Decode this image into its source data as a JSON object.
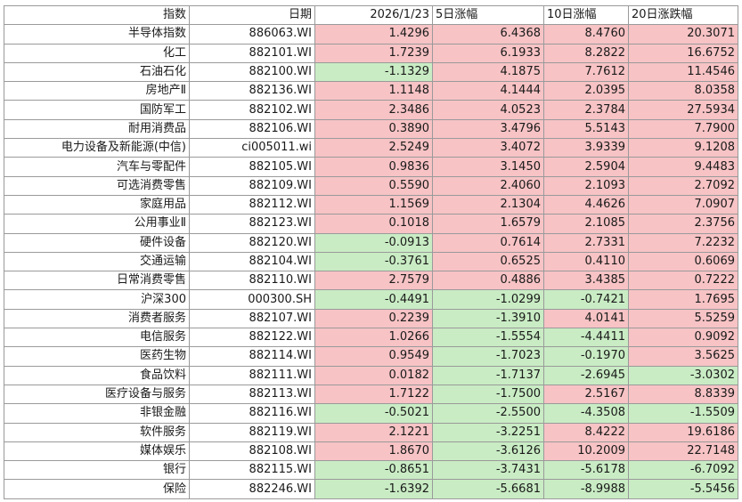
{
  "headers": {
    "name": "指数",
    "code": "日期",
    "d1": "2026/1/23",
    "d5": "5日涨幅",
    "d10": "10日涨幅",
    "d20": "20日涨跌幅"
  },
  "rows": [
    {
      "name": "半导体指数",
      "code": "886063.WI",
      "d1": "1.4296",
      "d5": "6.4368",
      "d10": "8.4760",
      "d20": "20.3071"
    },
    {
      "name": "化工",
      "code": "882101.WI",
      "d1": "1.7239",
      "d5": "6.1933",
      "d10": "8.2822",
      "d20": "16.6752"
    },
    {
      "name": "石油石化",
      "code": "882100.WI",
      "d1": "-1.1329",
      "d5": "4.1875",
      "d10": "7.7612",
      "d20": "11.4546"
    },
    {
      "name": "房地产Ⅱ",
      "code": "882136.WI",
      "d1": "1.1148",
      "d5": "4.1444",
      "d10": "2.0395",
      "d20": "8.0358"
    },
    {
      "name": "国防军工",
      "code": "882102.WI",
      "d1": "2.3486",
      "d5": "4.0523",
      "d10": "2.3784",
      "d20": "27.5934"
    },
    {
      "name": "耐用消费品",
      "code": "882106.WI",
      "d1": "0.3890",
      "d5": "3.4796",
      "d10": "5.5143",
      "d20": "7.7900"
    },
    {
      "name": "电力设备及新能源(中信)",
      "code": "ci005011.wi",
      "d1": "2.5249",
      "d5": "3.4072",
      "d10": "3.9339",
      "d20": "9.1208"
    },
    {
      "name": "汽车与零配件",
      "code": "882105.WI",
      "d1": "0.9836",
      "d5": "3.1450",
      "d10": "2.5904",
      "d20": "9.4483"
    },
    {
      "name": "可选消费零售",
      "code": "882109.WI",
      "d1": "0.5590",
      "d5": "2.4060",
      "d10": "2.1093",
      "d20": "2.7092"
    },
    {
      "name": "家庭用品",
      "code": "882112.WI",
      "d1": "1.1569",
      "d5": "2.1304",
      "d10": "4.4626",
      "d20": "7.0907"
    },
    {
      "name": "公用事业Ⅱ",
      "code": "882123.WI",
      "d1": "0.1018",
      "d5": "1.6579",
      "d10": "2.1085",
      "d20": "2.3756"
    },
    {
      "name": "硬件设备",
      "code": "882120.WI",
      "d1": "-0.0913",
      "d5": "0.7614",
      "d10": "2.7331",
      "d20": "7.2232"
    },
    {
      "name": "交通运输",
      "code": "882104.WI",
      "d1": "-0.3761",
      "d5": "0.6525",
      "d10": "0.4110",
      "d20": "0.6069"
    },
    {
      "name": "日常消费零售",
      "code": "882110.WI",
      "d1": "2.7579",
      "d5": "0.4886",
      "d10": "3.4385",
      "d20": "0.7222"
    },
    {
      "name": "沪深300",
      "code": "000300.SH",
      "d1": "-0.4491",
      "d5": "-1.0299",
      "d10": "-0.7421",
      "d20": "1.7695"
    },
    {
      "name": "消费者服务",
      "code": "882107.WI",
      "d1": "0.2239",
      "d5": "-1.3910",
      "d10": "4.0141",
      "d20": "5.5259"
    },
    {
      "name": "电信服务",
      "code": "882122.WI",
      "d1": "1.0266",
      "d5": "-1.5554",
      "d10": "-4.4411",
      "d20": "0.9092"
    },
    {
      "name": "医药生物",
      "code": "882114.WI",
      "d1": "0.9549",
      "d5": "-1.7023",
      "d10": "-0.1970",
      "d20": "3.5625"
    },
    {
      "name": "食品饮料",
      "code": "882111.WI",
      "d1": "0.0182",
      "d5": "-1.7137",
      "d10": "-2.6945",
      "d20": "-3.0302"
    },
    {
      "name": "医疗设备与服务",
      "code": "882113.WI",
      "d1": "1.7122",
      "d5": "-1.7500",
      "d10": "2.5167",
      "d20": "8.8339"
    },
    {
      "name": "非银金融",
      "code": "882116.WI",
      "d1": "-0.5021",
      "d5": "-2.5500",
      "d10": "-4.3508",
      "d20": "-1.5509"
    },
    {
      "name": "软件服务",
      "code": "882119.WI",
      "d1": "2.1221",
      "d5": "-3.2251",
      "d10": "8.4222",
      "d20": "19.6186"
    },
    {
      "name": "媒体娱乐",
      "code": "882108.WI",
      "d1": "1.8670",
      "d5": "-3.6126",
      "d10": "10.2009",
      "d20": "22.7148"
    },
    {
      "name": "银行",
      "code": "882115.WI",
      "d1": "-0.8651",
      "d5": "-3.7431",
      "d10": "-5.6178",
      "d20": "-6.7092"
    },
    {
      "name": "保险",
      "code": "882246.WI",
      "d1": "-1.6392",
      "d5": "-5.6681",
      "d10": "-8.9988",
      "d20": "-5.5456"
    }
  ],
  "colors": {
    "positive_fill": "#f7c3c5",
    "negative_fill": "#c9ecc4",
    "positive_text": "#9c1a1a",
    "negative_text": "#2f6e2f",
    "grid": "#9a9a9a"
  }
}
